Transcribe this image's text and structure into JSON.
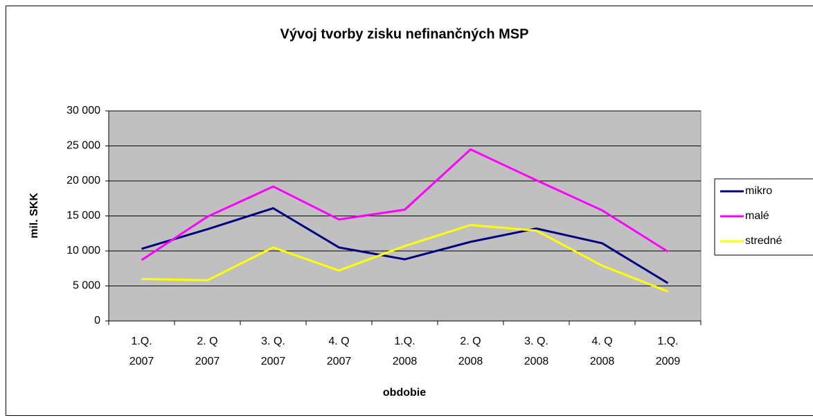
{
  "chart_data": {
    "type": "line",
    "title": "Vývoj tvorby zisku nefinančných MSP",
    "xlabel": "obdobie",
    "ylabel": "mil. SKK",
    "categories": [
      "1.Q.\n2007",
      "2. Q\n2007",
      "3. Q.\n2007",
      "4. Q\n2007",
      "1.Q.\n2008",
      "2. Q\n2008",
      "3. Q.\n2008",
      "4. Q\n2008",
      "1.Q.\n2009"
    ],
    "series": [
      {
        "name": "mikro",
        "color": "#000080",
        "values": [
          10300,
          13100,
          16100,
          10500,
          8800,
          11300,
          13200,
          11100,
          5400
        ]
      },
      {
        "name": "malé",
        "color": "#ff00ff",
        "values": [
          8700,
          14900,
          19200,
          14500,
          15900,
          24500,
          20100,
          15800,
          9900
        ]
      },
      {
        "name": "stredné",
        "color": "#ffff00",
        "values": [
          6000,
          5800,
          10500,
          7200,
          10700,
          13700,
          12900,
          7900,
          4200
        ]
      }
    ],
    "ylim": [
      0,
      30000
    ],
    "yticks": [
      0,
      {
        "value": 5000,
        "label": "5 000"
      },
      {
        "value": 10000,
        "label": "10 000"
      },
      {
        "value": 15000,
        "label": "15 000"
      },
      {
        "value": 20000,
        "label": "20 000"
      },
      {
        "value": 25000,
        "label": "25 000"
      },
      {
        "value": 30000,
        "label": "30 000"
      }
    ],
    "grid": true,
    "legend": "right",
    "plot_background": "#c0c0c0"
  }
}
